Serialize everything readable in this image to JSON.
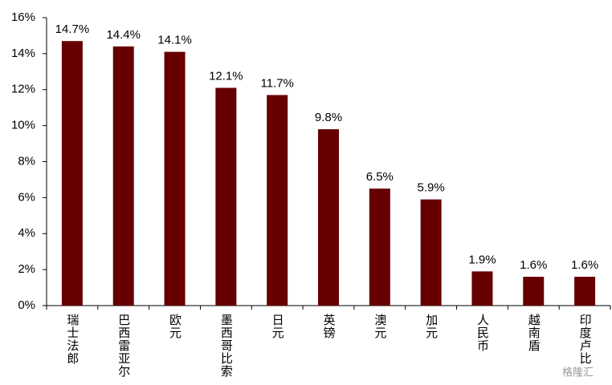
{
  "chart_data": {
    "type": "bar",
    "categories": [
      "瑞士法郎",
      "巴西雷亚尔",
      "欧元",
      "墨西哥比索",
      "日元",
      "英镑",
      "澳元",
      "加元",
      "人民币",
      "越南盾",
      "印度卢比"
    ],
    "values": [
      14.7,
      14.4,
      14.1,
      12.1,
      11.7,
      9.8,
      6.5,
      5.9,
      1.9,
      1.6,
      1.6
    ],
    "value_labels": [
      "14.7%",
      "14.4%",
      "14.1%",
      "12.1%",
      "11.7%",
      "9.8%",
      "6.5%",
      "5.9%",
      "1.9%",
      "1.6%",
      "1.6%"
    ],
    "color": "#660000",
    "ylim": [
      0,
      16
    ],
    "yticks": [
      {
        "value": 0,
        "label": "0%"
      },
      {
        "value": 2,
        "label": "2%"
      },
      {
        "value": 4,
        "label": "4%"
      },
      {
        "value": 6,
        "label": "6%"
      },
      {
        "value": 8,
        "label": "8%"
      },
      {
        "value": 10,
        "label": "10%"
      },
      {
        "value": 12,
        "label": "12%"
      },
      {
        "value": 14,
        "label": "14%"
      },
      {
        "value": 16,
        "label": "16%"
      }
    ],
    "grid": false,
    "watermark": "格隆汇"
  }
}
